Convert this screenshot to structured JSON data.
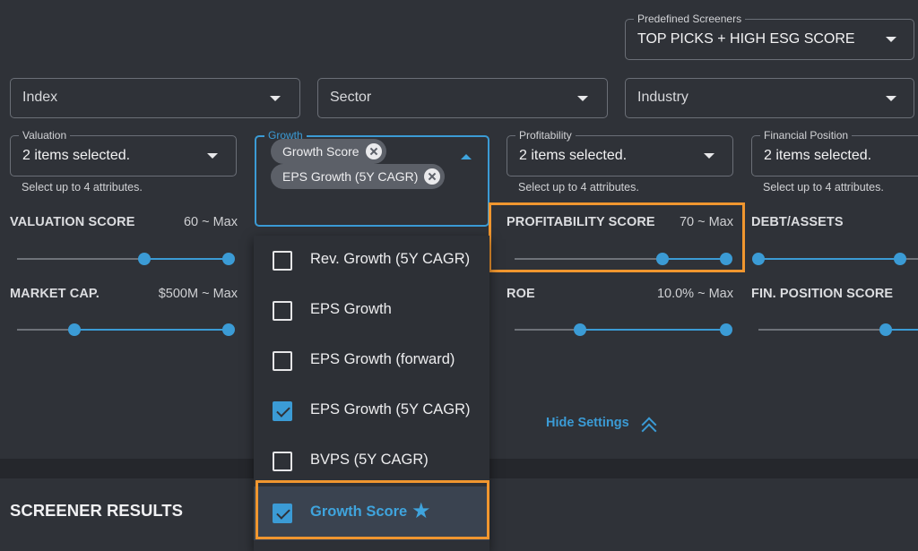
{
  "predefined": {
    "label": "Predefined Screeners",
    "value": "TOP PICKS + HIGH ESG SCORE"
  },
  "filters": {
    "index": {
      "placeholder": "Index"
    },
    "sector": {
      "placeholder": "Sector"
    },
    "industry": {
      "placeholder": "Industry"
    }
  },
  "attributes": {
    "helper": "Select up to 4 attributes.",
    "valuation": {
      "label": "Valuation",
      "value": "2 items selected."
    },
    "growth": {
      "label": "Growth",
      "chips": [
        "Growth Score",
        "EPS Growth (5Y CAGR)"
      ]
    },
    "profitability": {
      "label": "Profitability",
      "value": "2 items selected."
    },
    "financial": {
      "label": "Financial Position",
      "value": "2 items selected."
    }
  },
  "sliders": {
    "valuation_score": {
      "label": "VALUATION SCORE",
      "range": "60 ~ Max",
      "low": 0.6,
      "high": 1.0
    },
    "market_cap": {
      "label": "MARKET CAP.",
      "range": "$500M ~ Max",
      "low": 0.27,
      "high": 1.0
    },
    "profitability_score": {
      "label": "PROFITABILITY SCORE",
      "range": "70 ~ Max",
      "low": 0.7,
      "high": 1.0
    },
    "roe": {
      "label": "ROE",
      "range": "10.0% ~ Max",
      "low": 0.31,
      "high": 1.0
    },
    "debt_assets": {
      "label": "DEBT/ASSETS"
    },
    "fin_position_score": {
      "label": "FIN. POSITION SCORE"
    }
  },
  "growth_menu": [
    {
      "label": "Rev. Growth (5Y CAGR)",
      "checked": false
    },
    {
      "label": "EPS Growth",
      "checked": false
    },
    {
      "label": "EPS Growth (forward)",
      "checked": false
    },
    {
      "label": "EPS Growth (5Y CAGR)",
      "checked": true
    },
    {
      "label": "BVPS (5Y CAGR)",
      "checked": false
    },
    {
      "label": "Growth Score",
      "checked": true
    }
  ],
  "hide_settings": "Hide Settings",
  "results_title": "SCREENER RESULTS",
  "colors": {
    "accent": "#3b9bd5",
    "highlight": "#f0962f",
    "background": "#2f3238"
  }
}
